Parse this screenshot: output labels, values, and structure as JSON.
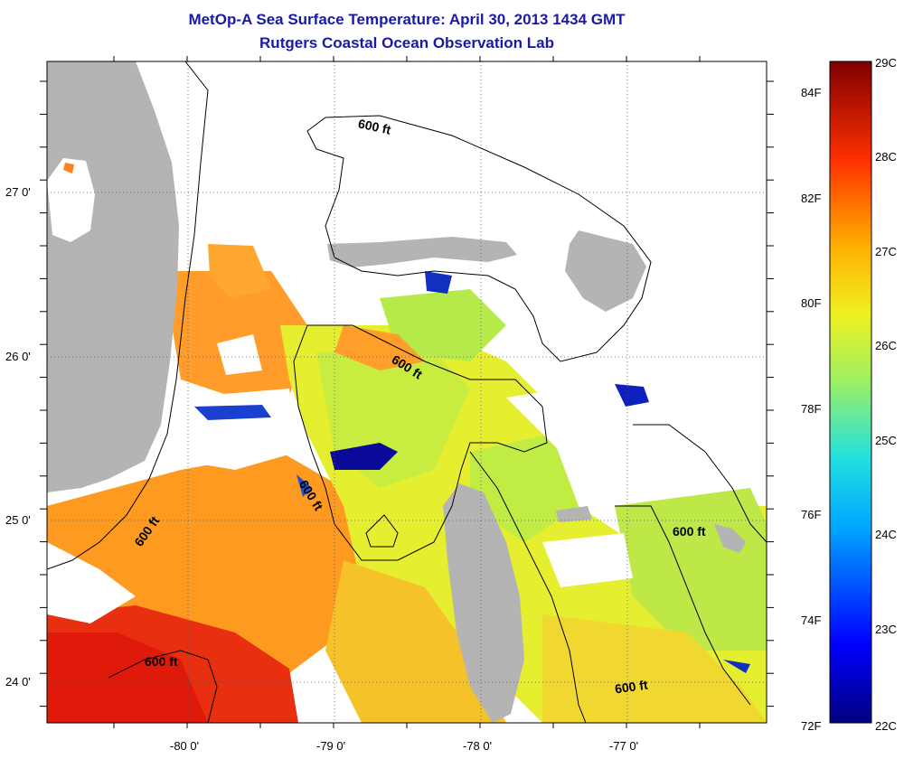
{
  "title": "MetOp-A Sea Surface Temperature:  April 30, 2013 1434 GMT",
  "subtitle": "Rutgers Coastal Ocean Observation Lab",
  "colors": {
    "land": "#b4b4b4",
    "cloud": "#ffffff",
    "title": "#1a1aa6"
  },
  "lat_labels": [
    "27 0'",
    "26 0'",
    "25 0'",
    "24 0'"
  ],
  "lon_labels": [
    "-80 0'",
    "-79 0'",
    "-78 0'",
    "-77 0'"
  ],
  "contour_label": "600 ft",
  "colorbar": {
    "fahrenheit": [
      "84F",
      "82F",
      "80F",
      "78F",
      "76F",
      "74F",
      "72F"
    ],
    "celsius": [
      "29C",
      "28C",
      "27C",
      "26C",
      "25C",
      "24C",
      "23C",
      "22C"
    ],
    "min_c": 22,
    "max_c": 29
  }
}
